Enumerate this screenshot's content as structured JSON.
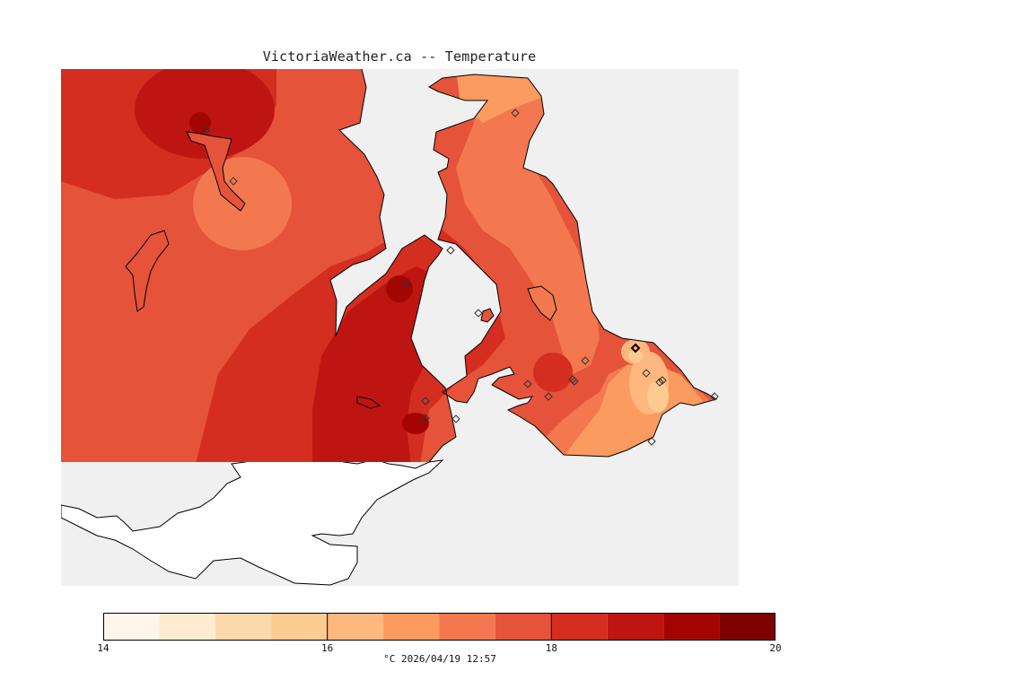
{
  "title": "VictoriaWeather.ca -- Temperature",
  "legend": {
    "min": 14,
    "max": 20,
    "tick_labels": [
      "14",
      "16",
      "18",
      "20"
    ],
    "bins": [
      {
        "from": 14.0,
        "to": 14.5,
        "color": "#fff5eb"
      },
      {
        "from": 14.5,
        "to": 15.0,
        "color": "#feebd2"
      },
      {
        "from": 15.0,
        "to": 15.5,
        "color": "#fdd8aa"
      },
      {
        "from": 15.5,
        "to": 16.0,
        "color": "#fdca8f"
      },
      {
        "from": 16.0,
        "to": 16.5,
        "color": "#fdb77f"
      },
      {
        "from": 16.5,
        "to": 17.0,
        "color": "#fb9b60"
      },
      {
        "from": 17.0,
        "to": 17.5,
        "color": "#f37850"
      },
      {
        "from": 17.5,
        "to": 18.0,
        "color": "#e5533a"
      },
      {
        "from": 18.0,
        "to": 18.5,
        "color": "#d42e20"
      },
      {
        "from": 18.5,
        "to": 19.0,
        "color": "#bf1512"
      },
      {
        "from": 19.0,
        "to": 19.5,
        "color": "#a30502"
      },
      {
        "from": 19.5,
        "to": 20.0,
        "color": "#7f0000"
      }
    ],
    "caption": "°C  2026/04/19 12:57"
  },
  "map": {
    "water_color": "#f0f0f0",
    "unshaded_land_color": "#ffffff",
    "coastline_color": "#000000",
    "station_icon": "diamond-marker"
  }
}
